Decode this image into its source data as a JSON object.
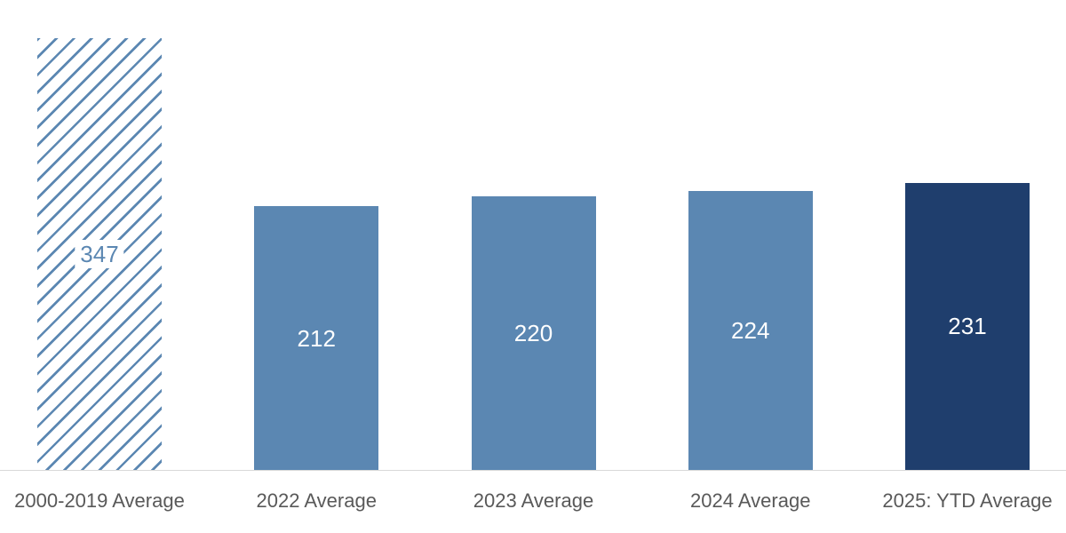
{
  "chart_data": {
    "type": "bar",
    "categories": [
      "2000-2019 Average",
      "2022 Average",
      "2023 Average",
      "2024 Average",
      "2025: YTD Average"
    ],
    "values": [
      347,
      212,
      220,
      224,
      231
    ],
    "value_labels": [
      "347",
      "212",
      "220",
      "224",
      "231"
    ],
    "series_name": "",
    "title": "",
    "xlabel": "",
    "ylabel": "",
    "ylim": [
      0,
      350
    ],
    "grid": false,
    "legend": false,
    "bar_styles": [
      "hatched",
      "solid",
      "solid",
      "solid",
      "dark"
    ],
    "colors": {
      "solid_bar": "#5B87B2",
      "dark_bar": "#1F3E6D",
      "hatch_line": "#5B87B2",
      "axis_line": "#D9D9D9",
      "category_label": "#595959",
      "value_label_on_bar": "#FFFFFF",
      "value_label_on_hatch": "#5B87B2"
    }
  }
}
